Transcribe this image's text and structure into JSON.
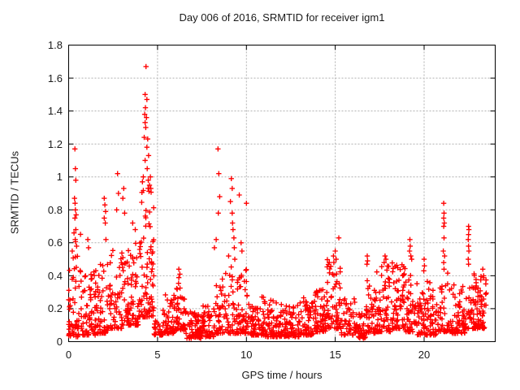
{
  "chart_data": {
    "type": "scatter",
    "title": "Day 006 of 2016, SRMTID for receiver igm1",
    "xlabel": "GPS time / hours",
    "ylabel": "SRMTID / TECUs",
    "xlim": [
      0,
      24
    ],
    "ylim": [
      0,
      1.8
    ],
    "grid": true,
    "grid_style": "dashed",
    "legend": "none",
    "marker": "plus",
    "marker_color": "#ff0000",
    "xticks": [
      {
        "v": 0,
        "label": "0"
      },
      {
        "v": 5,
        "label": "5"
      },
      {
        "v": 10,
        "label": "10"
      },
      {
        "v": 15,
        "label": "15"
      },
      {
        "v": 20,
        "label": "20"
      }
    ],
    "yticks": [
      {
        "v": 0,
        "label": "0"
      },
      {
        "v": 0.2,
        "label": "0.2"
      },
      {
        "v": 0.4,
        "label": "0.4"
      },
      {
        "v": 0.6,
        "label": "0.6"
      },
      {
        "v": 0.8,
        "label": "0.8"
      },
      {
        "v": 1,
        "label": "1"
      },
      {
        "v": 1.2,
        "label": "1.2"
      },
      {
        "v": 1.4,
        "label": "1.4"
      },
      {
        "v": 1.6,
        "label": "1.6"
      },
      {
        "v": 1.8,
        "label": "1.8"
      }
    ],
    "peak_points": [
      [
        0.35,
        1.17
      ],
      [
        0.38,
        1.05
      ],
      [
        0.4,
        0.98
      ],
      [
        0.33,
        0.87
      ],
      [
        0.36,
        0.84
      ],
      [
        0.38,
        0.8
      ],
      [
        0.42,
        0.77
      ],
      [
        0.35,
        0.75
      ],
      [
        0.3,
        0.66
      ],
      [
        0.37,
        0.62
      ],
      [
        0.45,
        0.58
      ],
      [
        0.2,
        0.55
      ],
      [
        1.08,
        0.62
      ],
      [
        1.12,
        0.57
      ],
      [
        2.0,
        0.87
      ],
      [
        2.04,
        0.83
      ],
      [
        2.08,
        0.79
      ],
      [
        2.0,
        0.75
      ],
      [
        2.06,
        0.72
      ],
      [
        2.1,
        0.62
      ],
      [
        2.75,
        1.02
      ],
      [
        2.8,
        0.9
      ],
      [
        2.7,
        0.8
      ],
      [
        3.1,
        0.93
      ],
      [
        3.05,
        0.87
      ],
      [
        3.15,
        0.78
      ],
      [
        3.6,
        0.72
      ],
      [
        3.75,
        0.68
      ],
      [
        4.35,
        1.67
      ],
      [
        4.3,
        1.5
      ],
      [
        4.4,
        1.47
      ],
      [
        4.32,
        1.42
      ],
      [
        4.28,
        1.38
      ],
      [
        4.38,
        1.36
      ],
      [
        4.3,
        1.33
      ],
      [
        4.34,
        1.3
      ],
      [
        4.25,
        1.24
      ],
      [
        4.45,
        1.23
      ],
      [
        4.4,
        1.18
      ],
      [
        4.5,
        1.13
      ],
      [
        4.3,
        1.1
      ],
      [
        4.42,
        1.05
      ],
      [
        4.2,
        1.0
      ],
      [
        4.48,
        0.98
      ],
      [
        4.15,
        0.97
      ],
      [
        4.55,
        0.95
      ],
      [
        4.6,
        1.0
      ],
      [
        4.62,
        0.93
      ],
      [
        6.2,
        0.44
      ],
      [
        6.26,
        0.41
      ],
      [
        8.4,
        1.17
      ],
      [
        8.45,
        1.02
      ],
      [
        9.15,
        0.99
      ],
      [
        9.2,
        0.93
      ],
      [
        8.5,
        0.88
      ],
      [
        9.1,
        0.85
      ],
      [
        8.42,
        0.78
      ],
      [
        9.2,
        0.78
      ],
      [
        9.22,
        0.72
      ],
      [
        9.25,
        0.68
      ],
      [
        8.3,
        0.62
      ],
      [
        9.3,
        0.63
      ],
      [
        8.2,
        0.57
      ],
      [
        9.32,
        0.57
      ],
      [
        9.0,
        0.52
      ],
      [
        9.35,
        0.5
      ],
      [
        9.6,
        0.89
      ],
      [
        10.0,
        0.84
      ],
      [
        9.7,
        0.6
      ],
      [
        9.75,
        0.55
      ],
      [
        15.2,
        0.63
      ],
      [
        15.0,
        0.55
      ],
      [
        14.9,
        0.52
      ],
      [
        15.05,
        0.5
      ],
      [
        16.8,
        0.52
      ],
      [
        16.82,
        0.49
      ],
      [
        16.78,
        0.47
      ],
      [
        16.8,
        0.37
      ],
      [
        17.8,
        0.52
      ],
      [
        17.85,
        0.5
      ],
      [
        17.75,
        0.48
      ],
      [
        19.2,
        0.62
      ],
      [
        19.22,
        0.58
      ],
      [
        19.18,
        0.55
      ],
      [
        19.25,
        0.52
      ],
      [
        19.3,
        0.5
      ],
      [
        20.0,
        0.5
      ],
      [
        20.02,
        0.46
      ],
      [
        19.98,
        0.43
      ],
      [
        21.1,
        0.84
      ],
      [
        21.12,
        0.78
      ],
      [
        21.1,
        0.75
      ],
      [
        21.14,
        0.72
      ],
      [
        21.1,
        0.7
      ],
      [
        21.12,
        0.63
      ],
      [
        21.08,
        0.55
      ],
      [
        21.15,
        0.52
      ],
      [
        21.1,
        0.48
      ],
      [
        21.12,
        0.44
      ],
      [
        22.5,
        0.7
      ],
      [
        22.52,
        0.68
      ],
      [
        22.5,
        0.65
      ],
      [
        22.48,
        0.62
      ],
      [
        22.5,
        0.58
      ],
      [
        22.52,
        0.55
      ],
      [
        22.48,
        0.5
      ],
      [
        22.5,
        0.47
      ],
      [
        23.3,
        0.44
      ],
      [
        23.35,
        0.4
      ]
    ],
    "band_segments_format": [
      "start_hour",
      "end_hour",
      "value_min",
      "value_max",
      "n_points"
    ],
    "band_segments": [
      [
        0.0,
        0.7,
        0.03,
        0.68,
        60
      ],
      [
        0.7,
        1.5,
        0.04,
        0.45,
        65
      ],
      [
        1.5,
        2.3,
        0.05,
        0.5,
        60
      ],
      [
        2.3,
        3.2,
        0.08,
        0.56,
        65
      ],
      [
        3.2,
        4.0,
        0.1,
        0.62,
        70
      ],
      [
        4.0,
        4.8,
        0.15,
        0.95,
        85
      ],
      [
        4.8,
        5.3,
        0.04,
        0.13,
        25
      ],
      [
        5.3,
        6.0,
        0.05,
        0.3,
        50
      ],
      [
        6.0,
        6.6,
        0.07,
        0.4,
        50
      ],
      [
        6.6,
        7.5,
        0.02,
        0.18,
        70
      ],
      [
        7.5,
        8.2,
        0.03,
        0.22,
        55
      ],
      [
        8.2,
        9.4,
        0.05,
        0.48,
        75
      ],
      [
        9.4,
        10.2,
        0.05,
        0.45,
        60
      ],
      [
        10.2,
        11.0,
        0.04,
        0.28,
        65
      ],
      [
        11.0,
        12.0,
        0.03,
        0.26,
        75
      ],
      [
        12.0,
        13.0,
        0.03,
        0.22,
        75
      ],
      [
        13.0,
        13.8,
        0.04,
        0.28,
        65
      ],
      [
        13.8,
        14.5,
        0.06,
        0.32,
        60
      ],
      [
        14.5,
        15.3,
        0.08,
        0.5,
        65
      ],
      [
        15.3,
        16.3,
        0.04,
        0.26,
        55
      ],
      [
        16.3,
        16.7,
        0.02,
        0.18,
        30
      ],
      [
        16.7,
        17.3,
        0.05,
        0.35,
        45
      ],
      [
        17.3,
        18.1,
        0.06,
        0.46,
        65
      ],
      [
        18.1,
        18.9,
        0.08,
        0.48,
        65
      ],
      [
        18.9,
        19.6,
        0.06,
        0.45,
        55
      ],
      [
        19.6,
        20.1,
        0.04,
        0.3,
        40
      ],
      [
        20.1,
        20.7,
        0.04,
        0.38,
        45
      ],
      [
        20.7,
        21.4,
        0.06,
        0.42,
        45
      ],
      [
        21.4,
        22.3,
        0.05,
        0.35,
        65
      ],
      [
        22.3,
        23.0,
        0.08,
        0.45,
        55
      ],
      [
        23.0,
        23.5,
        0.08,
        0.42,
        45
      ]
    ],
    "random_seed": 20160106,
    "tail_exponent": 2.1,
    "colors": {
      "marker": "#ff0000",
      "grid": "#b0b0b0",
      "axis": "#000000",
      "background": "#ffffff",
      "text": "#1a1a1a"
    }
  }
}
